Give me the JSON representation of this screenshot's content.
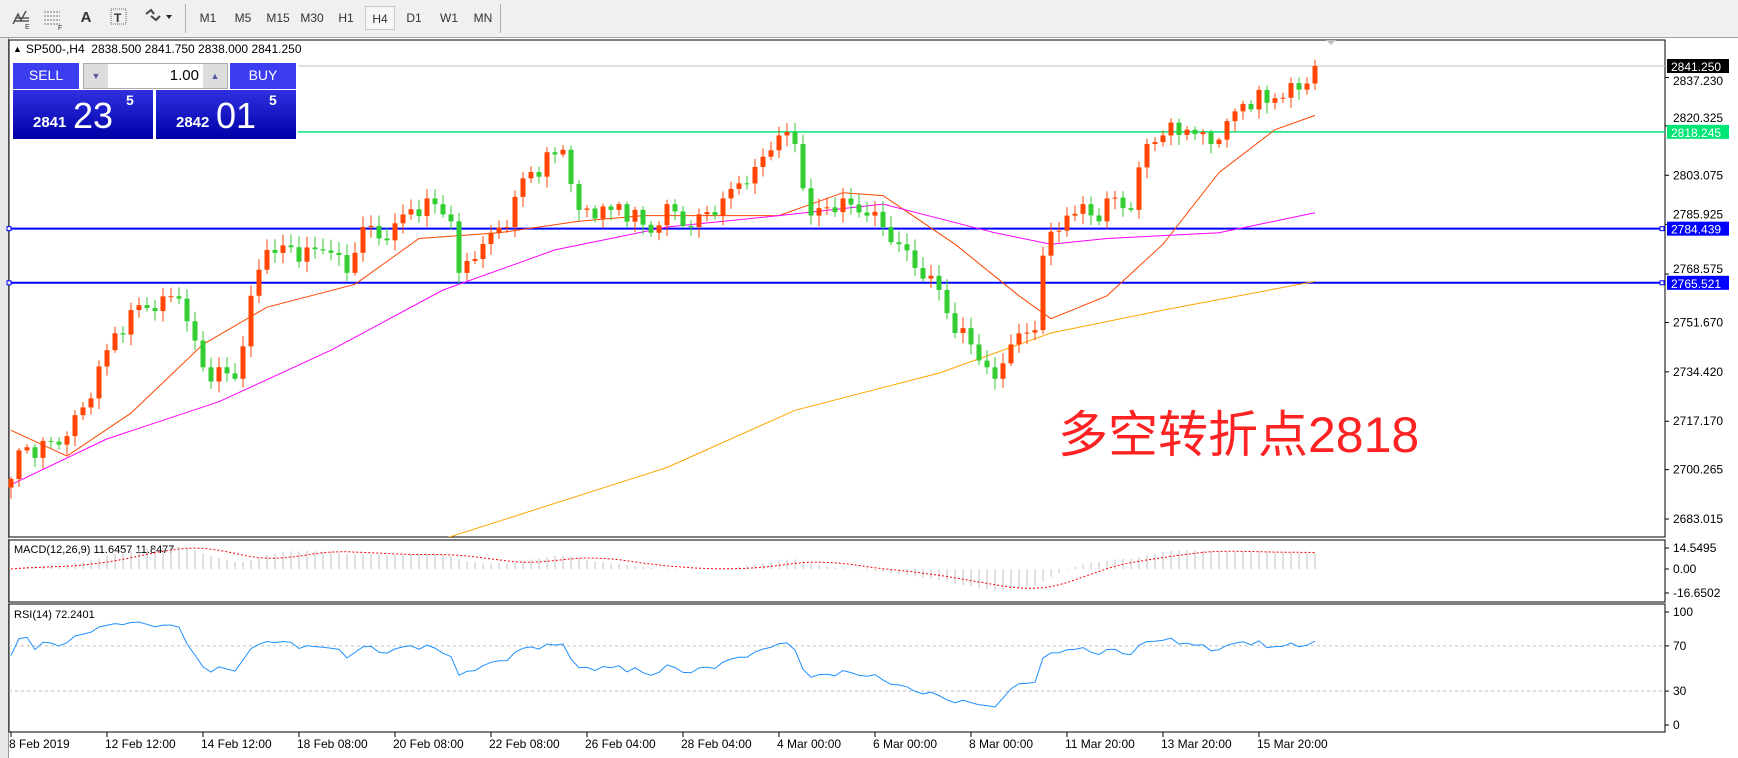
{
  "toolbar": {
    "icons": [
      "elliott-wave-icon",
      "fibonacci-icon",
      "text-icon",
      "text-label-icon",
      "arrows-icon"
    ],
    "text_tool": "A",
    "timeframes": [
      "M1",
      "M5",
      "M15",
      "M30",
      "H1",
      "H4",
      "D1",
      "W1",
      "MN"
    ],
    "active_timeframe": "H4"
  },
  "chart": {
    "header": "SP500-,H4  2838.500 2841.750 2838.000 2841.250",
    "annotation": "多空转折点2818"
  },
  "trade_panel": {
    "sell_label": "SELL",
    "buy_label": "BUY",
    "lot": "1.00",
    "sell_price": {
      "small": "2841",
      "big": "23",
      "sup": "5"
    },
    "buy_price": {
      "small": "2842",
      "big": "01",
      "sup": "5"
    }
  },
  "colors": {
    "up": "#ff4500",
    "down": "#32cd32",
    "ma_fast": "#ff4500",
    "ma_mid": "#ff00ff",
    "ma_slow": "#ffa500",
    "level_green": "#00e676",
    "level_blue": "#0000ff",
    "macd_signal": "#ff0000",
    "rsi": "#1e90ff"
  },
  "chart_data": {
    "type": "candlestick",
    "symbol": "SP500-",
    "timeframe": "H4",
    "price_axis": [
      "2837.230",
      "2820.325",
      "2803.075",
      "2785.925",
      "2768.575",
      "2751.670",
      "2734.420",
      "2717.170",
      "2700.265",
      "2683.015"
    ],
    "ylim": [
      2683.015,
      2841.25
    ],
    "time_axis": [
      "8 Feb 2019",
      "12 Feb 12:00",
      "14 Feb 12:00",
      "18 Feb 08:00",
      "20 Feb 08:00",
      "22 Feb 08:00",
      "26 Feb 04:00",
      "28 Feb 04:00",
      "4 Mar 00:00",
      "6 Mar 00:00",
      "8 Mar 00:00",
      "11 Mar 20:00",
      "13 Mar 20:00",
      "15 Mar 20:00"
    ],
    "bars_per_time_label": 12,
    "close_waypoints": [
      [
        0,
        2697
      ],
      [
        1,
        2707
      ],
      [
        6,
        2709
      ],
      [
        9,
        2722
      ],
      [
        12,
        2742
      ],
      [
        15,
        2756
      ],
      [
        21,
        2760
      ],
      [
        24,
        2736
      ],
      [
        28,
        2732
      ],
      [
        30,
        2761
      ],
      [
        32,
        2777
      ],
      [
        40,
        2776
      ],
      [
        42,
        2769
      ],
      [
        44,
        2785
      ],
      [
        46,
        2781
      ],
      [
        52,
        2795
      ],
      [
        55,
        2787
      ],
      [
        56,
        2769
      ],
      [
        60,
        2783
      ],
      [
        62,
        2785
      ],
      [
        64,
        2802
      ],
      [
        69,
        2812
      ],
      [
        71,
        2791
      ],
      [
        75,
        2791
      ],
      [
        76,
        2793
      ],
      [
        80,
        2783
      ],
      [
        82,
        2793
      ],
      [
        85,
        2785
      ],
      [
        89,
        2795
      ],
      [
        93,
        2806
      ],
      [
        96,
        2817
      ],
      [
        98,
        2814
      ],
      [
        100,
        2789
      ],
      [
        104,
        2795
      ],
      [
        107,
        2789
      ],
      [
        109,
        2785
      ],
      [
        111,
        2779
      ],
      [
        114,
        2767
      ],
      [
        116,
        2763
      ],
      [
        118,
        2748
      ],
      [
        120,
        2744
      ],
      [
        122,
        2736
      ],
      [
        123,
        2732
      ],
      [
        125,
        2744
      ],
      [
        128,
        2749
      ],
      [
        129,
        2775
      ],
      [
        132,
        2789
      ],
      [
        134,
        2793
      ],
      [
        136,
        2787
      ],
      [
        137,
        2795
      ],
      [
        140,
        2791
      ],
      [
        142,
        2814
      ],
      [
        144,
        2817
      ],
      [
        147,
        2819
      ],
      [
        150,
        2814
      ],
      [
        152,
        2822
      ],
      [
        154,
        2828
      ],
      [
        158,
        2830
      ],
      [
        161,
        2833
      ],
      [
        163,
        2841.25
      ]
    ],
    "ma_fast": [
      [
        0,
        2714
      ],
      [
        7,
        2705
      ],
      [
        15,
        2720
      ],
      [
        24,
        2744
      ],
      [
        32,
        2757
      ],
      [
        43,
        2765
      ],
      [
        51,
        2781
      ],
      [
        61,
        2783
      ],
      [
        71,
        2787
      ],
      [
        79,
        2789
      ],
      [
        96,
        2789
      ],
      [
        104,
        2797
      ],
      [
        109,
        2796
      ],
      [
        118,
        2779
      ],
      [
        126,
        2761
      ],
      [
        130,
        2753
      ],
      [
        137,
        2761
      ],
      [
        144,
        2779
      ],
      [
        151,
        2804
      ],
      [
        158,
        2819
      ],
      [
        163,
        2824
      ]
    ],
    "ma_mid": [
      [
        0,
        2695
      ],
      [
        12,
        2711
      ],
      [
        26,
        2724
      ],
      [
        40,
        2742
      ],
      [
        54,
        2763
      ],
      [
        68,
        2777
      ],
      [
        82,
        2785
      ],
      [
        96,
        2789
      ],
      [
        109,
        2793
      ],
      [
        123,
        2783
      ],
      [
        130,
        2779
      ],
      [
        137,
        2781
      ],
      [
        151,
        2783
      ],
      [
        163,
        2790
      ]
    ],
    "ma_slow": [
      [
        54,
        2676
      ],
      [
        82,
        2701
      ],
      [
        98,
        2721
      ],
      [
        116,
        2734
      ],
      [
        130,
        2748
      ],
      [
        144,
        2756
      ],
      [
        163,
        2766
      ]
    ],
    "levels": {
      "current": "2841.250",
      "resistance_green": "2818.245",
      "blue_upper": "2784.439",
      "blue_lower": "2765.521"
    },
    "macd": {
      "label": "MACD(12,26,9) 11.6457 11.8477",
      "axis": [
        "14.5495",
        "0.00",
        "-16.6502"
      ]
    },
    "rsi": {
      "label": "RSI(14) 72.2401",
      "axis": [
        "100",
        "70",
        "30",
        "0"
      ],
      "levels": [
        70,
        30
      ]
    }
  }
}
